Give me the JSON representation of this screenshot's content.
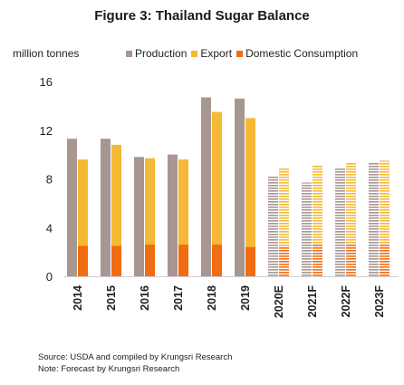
{
  "title": "Figure 3: Thailand Sugar Balance",
  "unit_label": "million tonnes",
  "legend": [
    {
      "name": "Production",
      "color": "#a89690"
    },
    {
      "name": "Export",
      "color": "#f5b935"
    },
    {
      "name": "Domestic Consumption",
      "color": "#f26c12"
    }
  ],
  "footnotes": {
    "source": "Source:  USDA and compiled by Krungsri Research",
    "note": "Note: Forecast by Krungsri Research"
  },
  "chart_data": {
    "type": "bar",
    "title": "Figure 3: Thailand Sugar Balance",
    "ylabel": "million tonnes",
    "ylim": [
      0,
      16
    ],
    "yticks": [
      0,
      4,
      8,
      12,
      16
    ],
    "grid": false,
    "legend_position": "top",
    "categories": [
      "2014",
      "2015",
      "2016",
      "2017",
      "2018",
      "2019",
      "2020E",
      "2021F",
      "2022F",
      "2023F"
    ],
    "forecast_categories": [
      "2020E",
      "2021F",
      "2022F",
      "2023F"
    ],
    "series": [
      {
        "name": "Production",
        "values": [
          11.3,
          11.3,
          9.8,
          10.0,
          14.7,
          14.6,
          8.2,
          7.7,
          8.9,
          9.4
        ]
      },
      {
        "name": "Export",
        "values": [
          9.6,
          10.8,
          9.7,
          9.6,
          13.5,
          13.0,
          8.9,
          9.1,
          9.3,
          9.5
        ]
      },
      {
        "name": "Domestic Consumption",
        "values": [
          2.5,
          2.5,
          2.6,
          2.6,
          2.6,
          2.4,
          2.5,
          2.6,
          2.6,
          2.7
        ]
      }
    ]
  }
}
